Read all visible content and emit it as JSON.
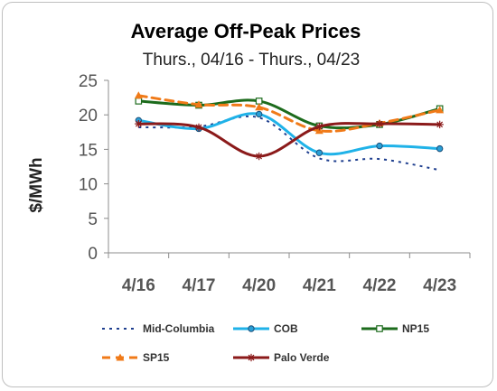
{
  "chart_data": {
    "type": "line",
    "title": "Average Off-Peak Prices",
    "subtitle": "Thurs., 04/16 - Thurs., 04/23",
    "xlabel": "",
    "ylabel": "$/MWh",
    "categories": [
      "4/16",
      "4/17",
      "4/20",
      "4/21",
      "4/22",
      "4/23"
    ],
    "yticks": [
      0,
      5,
      10,
      15,
      20,
      25
    ],
    "ylim": [
      0,
      25
    ],
    "grid": false,
    "legend_position": "bottom",
    "series": [
      {
        "name": "Mid-Columbia",
        "color": "#1f3f8f",
        "dash": "dotted",
        "marker": "none",
        "values": [
          18.2,
          18.3,
          19.6,
          13.7,
          13.6,
          12.0
        ]
      },
      {
        "name": "COB",
        "color": "#1fb2e8",
        "dash": "solid",
        "marker": "circle",
        "values": [
          19.2,
          18.0,
          20.1,
          14.5,
          15.5,
          15.1
        ]
      },
      {
        "name": "NP15",
        "color": "#1c6b1c",
        "dash": "solid",
        "marker": "square",
        "values": [
          22.0,
          21.4,
          22.0,
          18.4,
          18.6,
          20.9
        ]
      },
      {
        "name": "SP15",
        "color": "#f07a18",
        "dash": "dashed",
        "marker": "triangle",
        "values": [
          22.8,
          21.5,
          21.1,
          17.7,
          18.8,
          20.7
        ]
      },
      {
        "name": "Palo Verde",
        "color": "#8b1a1a",
        "dash": "solid",
        "marker": "star",
        "values": [
          18.7,
          18.2,
          14.0,
          18.3,
          18.7,
          18.6
        ]
      }
    ]
  }
}
